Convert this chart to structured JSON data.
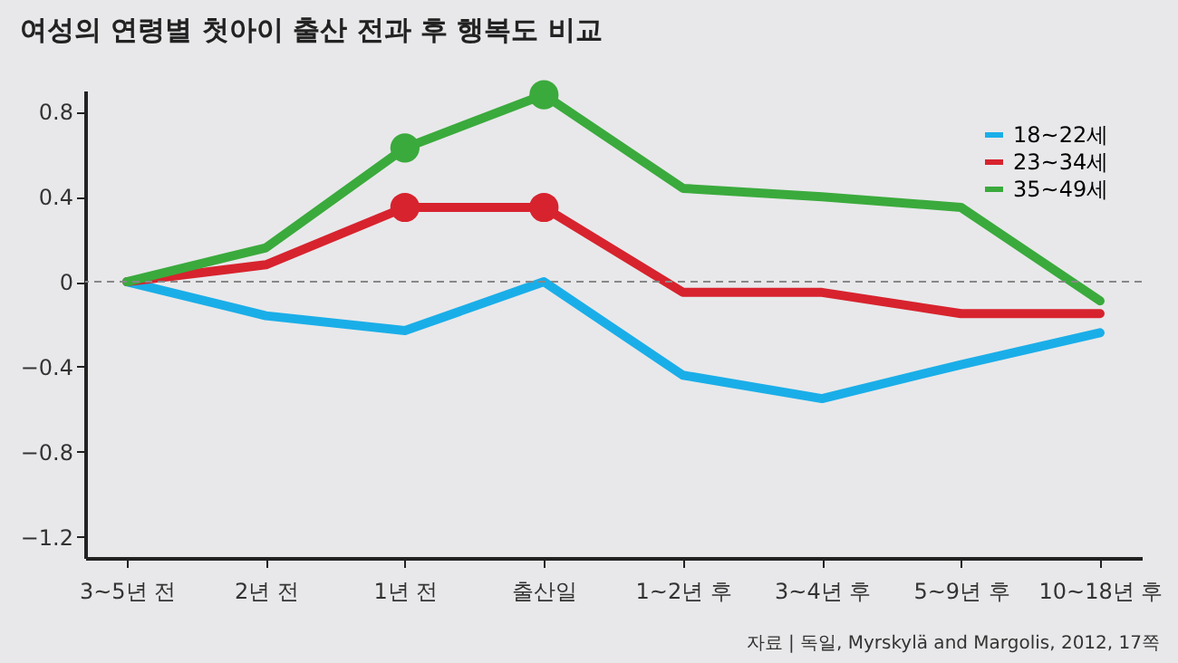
{
  "chart_data": {
    "type": "line",
    "title": "여성의 연령별 첫아이 출산 전과 후 행복도 비교",
    "categories": [
      "3~5년 전",
      "2년 전",
      "1년 전",
      "출산일",
      "1~2년 후",
      "3~4년 후",
      "5~9년 후",
      "10~18년 후"
    ],
    "series": [
      {
        "name": "18~22세",
        "color": "#1aaee8",
        "values": [
          0,
          -0.16,
          -0.23,
          0,
          -0.44,
          -0.55,
          -0.39,
          -0.24
        ]
      },
      {
        "name": "23~34세",
        "color": "#d7232e",
        "values": [
          0,
          0.08,
          0.35,
          0.35,
          -0.05,
          -0.05,
          -0.15,
          -0.15
        ]
      },
      {
        "name": "35~49세",
        "color": "#3aaa3c",
        "values": [
          0,
          0.16,
          0.63,
          0.88,
          0.44,
          0.4,
          0.35,
          -0.09
        ]
      },
      {
        "type": "scatter",
        "marker": "circle",
        "color": "#d7232e",
        "x": [
          "1년 전",
          "출산일"
        ],
        "values": [
          0.35,
          0.35
        ]
      },
      {
        "type": "scatter",
        "marker": "circle",
        "color": "#3aaa3c",
        "x": [
          "1년 전",
          "출산일"
        ],
        "values": [
          0.63,
          0.88
        ]
      }
    ],
    "ylim": [
      -1.3,
      0.9
    ],
    "yticks": [
      0.8,
      0.4,
      0,
      -0.4,
      -0.8,
      -1.2
    ],
    "ref_lines": [
      {
        "axis": "y",
        "value": 0,
        "color": "#888888",
        "line_style": "dashed"
      }
    ],
    "grid": false,
    "legend": "top right",
    "line_style": "solid",
    "annotations": [
      "자료 | 독일, Myrskylä and Margolis, 2012, 17쪽"
    ]
  }
}
